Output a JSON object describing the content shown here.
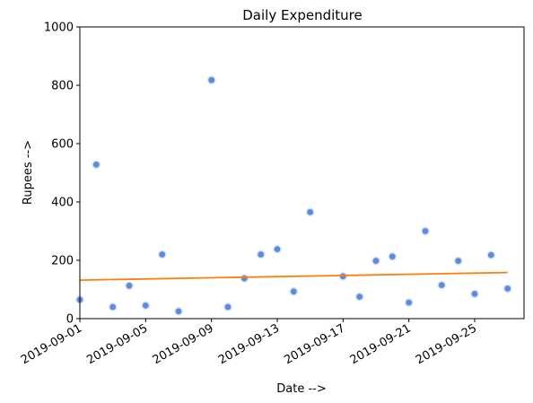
{
  "chart_data": {
    "type": "scatter",
    "title": "Daily Expenditure",
    "xlabel": "Date -->",
    "ylabel": "Rupees -->",
    "ylim": [
      0,
      1000
    ],
    "xlim": [
      "2019-09-01",
      "2019-09-28"
    ],
    "yticks": [
      "0",
      "200",
      "400",
      "600",
      "800",
      "1000"
    ],
    "xticks": [
      "2019-09-01",
      "2019-09-05",
      "2019-09-09",
      "2019-09-13",
      "2019-09-17",
      "2019-09-21",
      "2019-09-25"
    ],
    "grid": false,
    "colors": {
      "points": "#5b8bd9",
      "point_edge": "#dbe6f6",
      "trend": "#ff7f0e"
    },
    "series": [
      {
        "points": [
          {
            "x": "2019-09-01",
            "y": 65
          },
          {
            "x": "2019-09-02",
            "y": 528
          },
          {
            "x": "2019-09-03",
            "y": 40
          },
          {
            "x": "2019-09-04",
            "y": 113
          },
          {
            "x": "2019-09-05",
            "y": 45
          },
          {
            "x": "2019-09-06",
            "y": 220
          },
          {
            "x": "2019-09-07",
            "y": 25
          },
          {
            "x": "2019-09-09",
            "y": 818
          },
          {
            "x": "2019-09-10",
            "y": 40
          },
          {
            "x": "2019-09-11",
            "y": 138
          },
          {
            "x": "2019-09-12",
            "y": 220
          },
          {
            "x": "2019-09-13",
            "y": 238
          },
          {
            "x": "2019-09-14",
            "y": 93
          },
          {
            "x": "2019-09-15",
            "y": 365
          },
          {
            "x": "2019-09-17",
            "y": 145
          },
          {
            "x": "2019-09-18",
            "y": 75
          },
          {
            "x": "2019-09-19",
            "y": 198
          },
          {
            "x": "2019-09-20",
            "y": 213
          },
          {
            "x": "2019-09-21",
            "y": 55
          },
          {
            "x": "2019-09-22",
            "y": 300
          },
          {
            "x": "2019-09-23",
            "y": 115
          },
          {
            "x": "2019-09-24",
            "y": 198
          },
          {
            "x": "2019-09-25",
            "y": 85
          },
          {
            "x": "2019-09-26",
            "y": 218
          },
          {
            "x": "2019-09-27",
            "y": 103
          }
        ]
      }
    ],
    "trend_line": [
      {
        "x": "2019-09-01",
        "y": 132
      },
      {
        "x": "2019-09-27",
        "y": 158
      }
    ]
  }
}
